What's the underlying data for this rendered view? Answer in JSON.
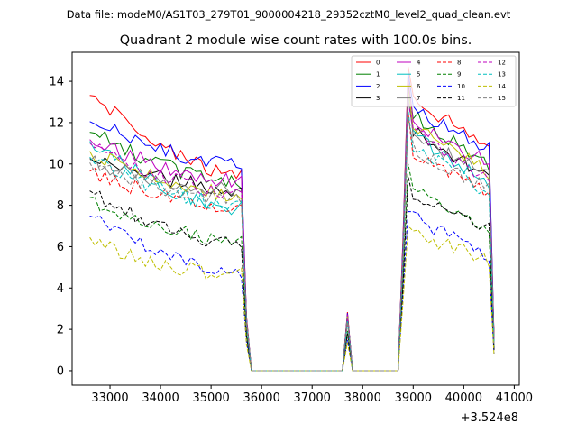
{
  "chart_data": {
    "type": "line",
    "suptitle": "Data file: modeM0/AS1T03_279T01_9000004218_29352cztM0_level2_quad_clean.evt",
    "title": "Quadrant 2 module wise count rates with 100.0s bins.",
    "xlabel": "",
    "ylabel": "",
    "x_offset_label": "+3.524e8",
    "xlim": [
      32250,
      41100
    ],
    "ylim": [
      -0.7,
      15.4
    ],
    "xticks": [
      33000,
      34000,
      35000,
      36000,
      37000,
      38000,
      39000,
      40000,
      41000
    ],
    "yticks": [
      0,
      2,
      4,
      6,
      8,
      10,
      12,
      14
    ],
    "grid": false,
    "legend": {
      "placement": "top-right",
      "ncol": 4
    },
    "segments": {
      "seg1": {
        "x_start": 32600,
        "x_end": 35600,
        "step": 100
      },
      "seg2": {
        "x_start": 38900,
        "x_end": 40500,
        "step": 100
      },
      "gap": {
        "x": [
          35700,
          35800,
          35900,
          37600,
          37700,
          37800,
          37900,
          38700,
          38800
        ],
        "values": [
          2.5,
          0.0,
          0.0,
          0.0,
          2.7,
          0.0,
          0.0,
          0.0,
          6.0
        ],
        "last_x": 40600,
        "last_value": 1.5
      }
    },
    "series": [
      {
        "name": "0",
        "color": "#ff0000",
        "dash": "solid",
        "seg1": {
          "start": 13.4,
          "end": 9.4
        },
        "peak": 14.7,
        "seg2": {
          "start": 13.2,
          "end": 10.9
        }
      },
      {
        "name": "1",
        "color": "#008000",
        "dash": "solid",
        "seg1": {
          "start": 11.6,
          "end": 9.1
        },
        "peak": 14.0,
        "seg2": {
          "start": 12.5,
          "end": 9.9
        }
      },
      {
        "name": "2",
        "color": "#0000ff",
        "dash": "solid",
        "seg1": {
          "start": 12.1,
          "end": 9.9
        },
        "peak": 14.4,
        "seg2": {
          "start": 12.8,
          "end": 10.7
        }
      },
      {
        "name": "3",
        "color": "#000000",
        "dash": "solid",
        "seg1": {
          "start": 10.3,
          "end": 8.8
        },
        "peak": 13.8,
        "seg2": {
          "start": 11.8,
          "end": 9.3
        }
      },
      {
        "name": "4",
        "color": "#bf00bf",
        "dash": "solid",
        "seg1": {
          "start": 11.2,
          "end": 9.2
        },
        "peak": 14.1,
        "seg2": {
          "start": 12.2,
          "end": 10.0
        }
      },
      {
        "name": "5",
        "color": "#00bfbf",
        "dash": "solid",
        "seg1": {
          "start": 11.1,
          "end": 7.8
        },
        "peak": 13.5,
        "seg2": {
          "start": 11.5,
          "end": 9.0
        }
      },
      {
        "name": "6",
        "color": "#bfbf00",
        "dash": "solid",
        "seg1": {
          "start": 10.6,
          "end": 8.5
        },
        "peak": 13.6,
        "seg2": {
          "start": 12.0,
          "end": 9.6
        }
      },
      {
        "name": "7",
        "color": "#808080",
        "dash": "solid",
        "seg1": {
          "start": 10.1,
          "end": 8.7
        },
        "peak": 13.2,
        "seg2": {
          "start": 11.4,
          "end": 9.5
        }
      },
      {
        "name": "8",
        "color": "#ff0000",
        "dash": "dashed",
        "seg1": {
          "start": 9.6,
          "end": 7.9
        },
        "peak": 12.5,
        "seg2": {
          "start": 10.7,
          "end": 8.6
        }
      },
      {
        "name": "9",
        "color": "#008000",
        "dash": "dashed",
        "seg1": {
          "start": 8.3,
          "end": 6.2
        },
        "peak": 10.0,
        "seg2": {
          "start": 8.9,
          "end": 6.8
        }
      },
      {
        "name": "10",
        "color": "#0000ff",
        "dash": "dashed",
        "seg1": {
          "start": 7.4,
          "end": 4.8
        },
        "peak": 7.7,
        "seg2": {
          "start": 7.5,
          "end": 5.6
        }
      },
      {
        "name": "11",
        "color": "#000000",
        "dash": "dashed",
        "seg1": {
          "start": 8.6,
          "end": 6.1
        },
        "peak": 9.4,
        "seg2": {
          "start": 8.5,
          "end": 6.9
        }
      },
      {
        "name": "12",
        "color": "#bf00bf",
        "dash": "dashed",
        "seg1": {
          "start": 10.9,
          "end": 8.6
        },
        "peak": 13.0,
        "seg2": {
          "start": 11.7,
          "end": 9.1
        }
      },
      {
        "name": "13",
        "color": "#00bfbf",
        "dash": "dashed",
        "seg1": {
          "start": 10.2,
          "end": 8.0
        },
        "peak": 12.6,
        "seg2": {
          "start": 11.0,
          "end": 8.6
        }
      },
      {
        "name": "14",
        "color": "#bfbf00",
        "dash": "dashed",
        "seg1": {
          "start": 6.3,
          "end": 4.6
        },
        "peak": 7.0,
        "seg2": {
          "start": 6.8,
          "end": 5.3
        }
      },
      {
        "name": "15",
        "color": "#808080",
        "dash": "dashed",
        "seg1": {
          "start": 9.9,
          "end": 8.3
        },
        "peak": 12.2,
        "seg2": {
          "start": 10.8,
          "end": 8.8
        }
      }
    ]
  }
}
